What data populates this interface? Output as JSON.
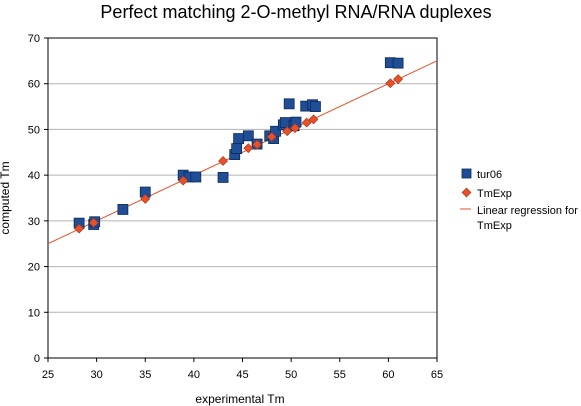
{
  "chart_data": {
    "type": "scatter",
    "title": "Perfect matching 2-O-methyl RNA/RNA duplexes",
    "xlabel": "experimental Tm",
    "ylabel": "computed Tm",
    "xlim": [
      25,
      65
    ],
    "ylim": [
      0,
      70
    ],
    "x_ticks": [
      25,
      30,
      35,
      40,
      45,
      50,
      55,
      60,
      65
    ],
    "y_ticks": [
      0,
      10,
      20,
      30,
      40,
      50,
      60,
      70
    ],
    "grid": "horizontal",
    "legend_position": "right",
    "series": [
      {
        "name": "tur06",
        "marker": "square",
        "color": "#1f4e96",
        "points": [
          [
            28.2,
            29.5
          ],
          [
            29.7,
            29.2
          ],
          [
            29.8,
            29.8
          ],
          [
            32.7,
            32.5
          ],
          [
            35.0,
            36.3
          ],
          [
            38.9,
            40.0
          ],
          [
            39.5,
            39.6
          ],
          [
            40.2,
            39.6
          ],
          [
            43.0,
            39.5
          ],
          [
            44.2,
            44.5
          ],
          [
            44.4,
            45.8
          ],
          [
            44.6,
            48.0
          ],
          [
            45.6,
            48.6
          ],
          [
            46.5,
            46.8
          ],
          [
            47.8,
            48.6
          ],
          [
            48.2,
            48.0
          ],
          [
            48.4,
            49.6
          ],
          [
            49.2,
            51.0
          ],
          [
            49.4,
            51.5
          ],
          [
            49.8,
            55.6
          ],
          [
            50.3,
            50.8
          ],
          [
            50.5,
            51.6
          ],
          [
            51.5,
            55.1
          ],
          [
            52.2,
            55.4
          ],
          [
            52.5,
            55.0
          ],
          [
            60.2,
            64.6
          ],
          [
            61.0,
            64.5
          ]
        ]
      },
      {
        "name": "TmExp",
        "marker": "diamond",
        "color": "#e8502a",
        "points": [
          [
            28.2,
            28.3
          ],
          [
            29.7,
            29.6
          ],
          [
            35.0,
            34.8
          ],
          [
            38.9,
            38.8
          ],
          [
            43.0,
            43.1
          ],
          [
            45.6,
            45.9
          ],
          [
            46.5,
            46.7
          ],
          [
            48.0,
            48.4
          ],
          [
            49.6,
            49.6
          ],
          [
            50.4,
            50.3
          ],
          [
            51.6,
            51.5
          ],
          [
            52.3,
            52.2
          ],
          [
            60.2,
            60.1
          ],
          [
            61.0,
            61.0
          ]
        ]
      }
    ],
    "regression": {
      "name": "Linear regression for TmExp",
      "color": "#e8502a",
      "slope": 1.0,
      "intercept": 0.0
    }
  }
}
